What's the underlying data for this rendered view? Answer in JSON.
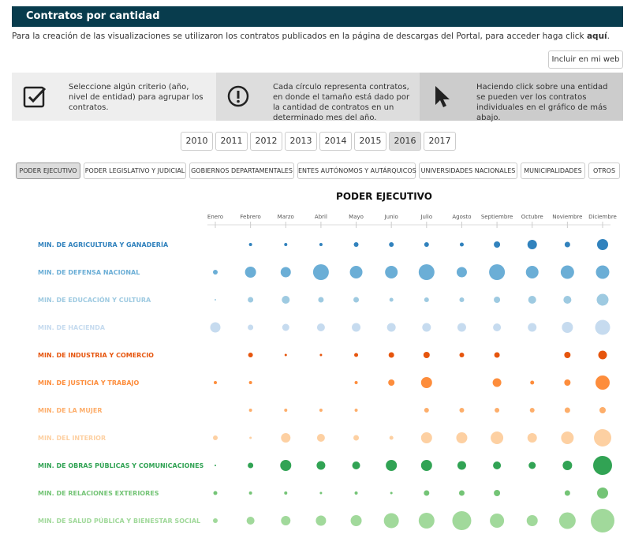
{
  "header": {
    "title": "Contratos por cantidad"
  },
  "intro": {
    "text": "Para la creación de las visualizaciones se utilizaron los contratos publicados en la página de descargas del Portal, para acceder haga click ",
    "link": "aquí",
    "end": "."
  },
  "embed_button": "Incluir en mi web",
  "info_boxes": [
    "Seleccione algún criterio (año, nivel de entidad) para agrupar los contratos.",
    "Cada círculo representa contratos, en donde el tamaño está dado por la cantidad de contratos en un determinado mes del año.",
    "Haciendo click sobre una entidad se pueden ver los contratos individuales en el gráfico de más abajo."
  ],
  "years": {
    "options": [
      "2010",
      "2011",
      "2012",
      "2013",
      "2014",
      "2015",
      "2016",
      "2017"
    ],
    "selected": "2016"
  },
  "tabs": {
    "options": [
      "PODER EJECUTIVO",
      "PODER LEGISLATIVO Y JUDICIAL",
      "GOBIERNOS DEPARTAMENTALES",
      "ENTES AUTÓNOMOS Y AUTÁRQUICOS",
      "UNIVERSIDADES NACIONALES",
      "MUNICIPALIDADES",
      "OTROS"
    ],
    "selected": "PODER EJECUTIVO"
  },
  "chart_data": {
    "type": "bubble-matrix",
    "title": "PODER EJECUTIVO",
    "categories": [
      "Enero",
      "Febrero",
      "Marzo",
      "Abril",
      "Mayo",
      "Junio",
      "Julio",
      "Agosto",
      "Septiembre",
      "Octubre",
      "Noviembre",
      "Diciembre"
    ],
    "series": [
      {
        "name": "MIN. DE AGRICULTURA Y GANADERÍA",
        "color": "#3182bd",
        "values": [
          null,
          2,
          2,
          2,
          3,
          3,
          3,
          2.5,
          4,
          6,
          3.5,
          7
        ]
      },
      {
        "name": "MIN. DE DEFENSA NACIONAL",
        "color": "#6baed6",
        "values": [
          3,
          7,
          6.5,
          10,
          8,
          8,
          10,
          6.5,
          10,
          8,
          8.5,
          8.5
        ]
      },
      {
        "name": "MIN. DE EDUCACIÓN Y CULTURA",
        "color": "#9ecae1",
        "values": [
          1,
          3.5,
          5,
          3.5,
          3.5,
          2.5,
          3,
          3,
          4,
          5,
          5,
          7.5
        ]
      },
      {
        "name": "MIN. DE HACIENDA",
        "color": "#c6dbef",
        "values": [
          6.5,
          3.5,
          4.5,
          5,
          5.5,
          5.5,
          5.5,
          5.5,
          5,
          5.5,
          7,
          9.5
        ]
      },
      {
        "name": "MIN. DE INDUSTRIA Y COMERCIO",
        "color": "#e6550d",
        "values": [
          null,
          3,
          1.5,
          1.5,
          2.5,
          3.5,
          4,
          3,
          3.5,
          null,
          4,
          5.5
        ]
      },
      {
        "name": "MIN. DE JUSTICIA Y TRABAJO",
        "color": "#fd8d3c",
        "values": [
          2,
          2,
          null,
          null,
          2,
          4,
          7,
          null,
          5.5,
          2.5,
          4,
          9
        ]
      },
      {
        "name": "MIN. DE LA MUJER",
        "color": "#fdae6b",
        "values": [
          null,
          2,
          2,
          2,
          2,
          null,
          3,
          3,
          3,
          3,
          3.5,
          4
        ]
      },
      {
        "name": "MIN. DEL INTERIOR",
        "color": "#fdd0a2",
        "values": [
          3,
          1.5,
          6,
          5,
          3.5,
          2.5,
          7,
          7,
          8,
          6,
          8,
          11
        ]
      },
      {
        "name": "MIN. DE OBRAS PÚBLICAS Y COMUNICACIONES",
        "color": "#31a354",
        "values": [
          1,
          3.5,
          7,
          5.5,
          5,
          7,
          7,
          5.5,
          5,
          4.5,
          6,
          12
        ]
      },
      {
        "name": "MIN. DE RELACIONES EXTERIORES",
        "color": "#74c476",
        "values": [
          2.5,
          2,
          2,
          1.5,
          2,
          1.5,
          3.5,
          3.5,
          4,
          null,
          3.5,
          7
        ]
      },
      {
        "name": "MIN. DE SALUD PÚBLICA Y BIENESTAR SOCIAL",
        "color": "#a1d99b",
        "values": [
          3,
          5,
          6,
          6.5,
          7,
          9.5,
          10,
          12,
          9,
          7,
          10.5,
          15
        ]
      }
    ]
  }
}
